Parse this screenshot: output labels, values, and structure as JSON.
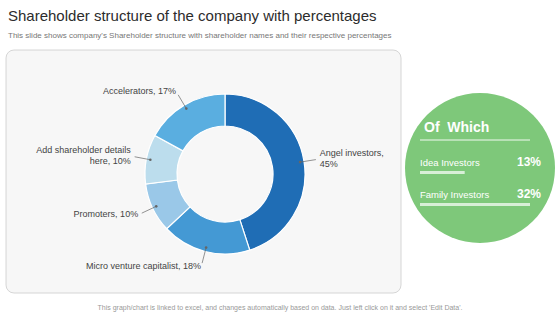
{
  "chart_data": [
    {
      "type": "pie",
      "title": "Shareholder structure of the company with percentages",
      "subtitle": "This slide shows company's Shareholder structure with shareholder names and their respective percentages",
      "values": [
        45,
        18,
        10,
        10,
        17
      ],
      "colors": [
        "#1f6db5",
        "#4499d4",
        "#9ac8e8",
        "#bcdded",
        "#5aaee0"
      ],
      "annotations": [
        "Angel investors,\n45%",
        "Micro venture capitalist, 18%",
        "Promoters, 10%",
        "Add shareholder details\nhere, 10%",
        "Accelerators, 17%",
        "This graph/chart is linked to excel, and changes automatically based on data. Just left click on it and select 'Edit Data'."
      ]
    },
    {
      "type": "list",
      "title": "Of  Which",
      "categories": [
        "Idea Investors",
        "Family Investors"
      ],
      "values": [
        13,
        32
      ],
      "value_labels": [
        "13%",
        "32%"
      ],
      "data_labels": true,
      "color": "#7ec87a"
    }
  ]
}
